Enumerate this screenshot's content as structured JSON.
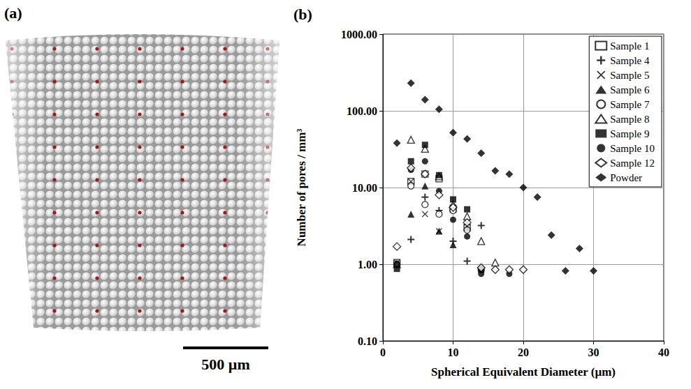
{
  "image": {
    "label": "(a)",
    "scale_bar": "500 µm"
  },
  "chart_data": {
    "type": "scatter",
    "title": "(b)",
    "x_label": "Spherical Equivalent Diameter (µm)",
    "y_label": "Number of pores / mm³",
    "log": "y",
    "grid": true,
    "legend": "top-right",
    "xlim": [
      0,
      40
    ],
    "xticks": [
      0,
      10,
      20,
      30,
      40
    ],
    "ylim": [
      0.1,
      1000
    ],
    "yticks": [
      {
        "value": 0.1,
        "label": "0.10"
      },
      {
        "value": 1,
        "label": "1.00"
      },
      {
        "value": 10,
        "label": "10.00"
      },
      {
        "value": 100,
        "label": "100.00"
      },
      {
        "value": 1000,
        "label": "1000.00"
      }
    ],
    "series": [
      {
        "name": "Sample 1",
        "color": "#000000",
        "marker": "square-open",
        "x": [
          2,
          4,
          6,
          8,
          10,
          12
        ],
        "values": [
          1.05,
          12,
          15,
          13,
          5.3,
          3
        ]
      },
      {
        "name": "Sample 4",
        "color": "#000000",
        "marker": "plus",
        "x": [
          2,
          4,
          6,
          8,
          10,
          12,
          14
        ],
        "values": [
          1.0,
          2.1,
          7.5,
          5,
          2.0,
          1.1,
          3.2
        ]
      },
      {
        "name": "Sample 5",
        "color": "#000000",
        "marker": "x",
        "x": [
          2,
          4,
          6,
          8,
          10,
          12
        ],
        "values": [
          1.05,
          12,
          4.5,
          2.7,
          5.5,
          3.5
        ]
      },
      {
        "name": "Sample 6",
        "color": "#000000",
        "marker": "triangle",
        "x": [
          2,
          4,
          6,
          8,
          10,
          12,
          14
        ],
        "values": [
          1.0,
          4.5,
          10.5,
          2.7,
          1.8,
          3.0,
          0.9
        ]
      },
      {
        "name": "Sample 7",
        "color": "#000000",
        "marker": "circle-open",
        "x": [
          2,
          4,
          6,
          8,
          10,
          12,
          14
        ],
        "values": [
          1.0,
          10.5,
          6.0,
          4.5,
          5.0,
          2.8,
          0.85
        ]
      },
      {
        "name": "Sample 8",
        "color": "#000000",
        "marker": "triangle-open",
        "x": [
          2,
          4,
          6,
          8,
          10,
          12,
          14,
          16
        ],
        "values": [
          1.0,
          42,
          32,
          14,
          6,
          4.2,
          2.0,
          1.05
        ]
      },
      {
        "name": "Sample 9",
        "color": "#000000",
        "marker": "square",
        "x": [
          2,
          4,
          6,
          8,
          10,
          12,
          14
        ],
        "values": [
          0.87,
          22,
          36,
          14.5,
          7,
          5.2,
          0.85
        ]
      },
      {
        "name": "Sample 10",
        "color": "#000000",
        "marker": "circle",
        "x": [
          2,
          4,
          6,
          8,
          10,
          12,
          14,
          18
        ],
        "values": [
          1.0,
          17,
          22,
          9,
          3.8,
          2.3,
          0.75,
          0.75
        ]
      },
      {
        "name": "Sample 12",
        "color": "#000000",
        "marker": "diamond-open",
        "x": [
          2,
          4,
          6,
          8,
          10,
          12,
          14,
          16,
          18,
          20
        ],
        "values": [
          1.7,
          18,
          15,
          8,
          5.5,
          3.5,
          0.9,
          0.85,
          0.85,
          0.85
        ]
      },
      {
        "name": "Powder",
        "color": "#000000",
        "marker": "diamond",
        "x": [
          2,
          4,
          6,
          8,
          10,
          12,
          14,
          16,
          18,
          20,
          22,
          24,
          26,
          28,
          30
        ],
        "values": [
          38,
          230,
          140,
          105,
          52,
          43,
          28,
          16.5,
          15,
          10,
          7.5,
          2.4,
          0.82,
          1.6,
          0.82
        ]
      }
    ]
  }
}
